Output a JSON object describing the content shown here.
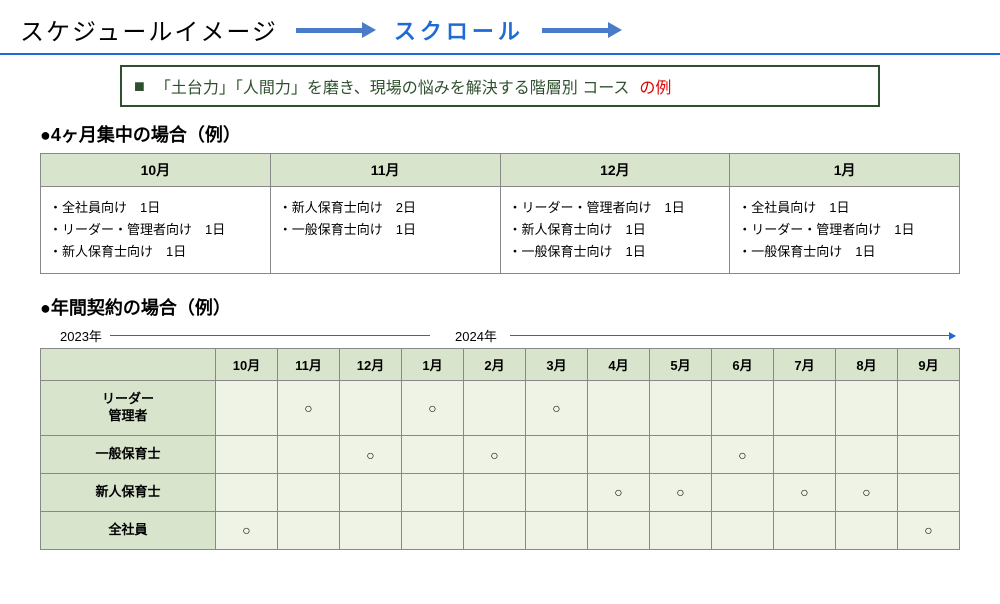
{
  "header": {
    "title": "スケジュールイメージ",
    "scroll_label": "スクロール"
  },
  "banner": {
    "square": "■",
    "text_main": "「土台力」「人間力」を磨き、現場の悩みを解決する階層別 コース",
    "text_red": "の例"
  },
  "section1": {
    "heading": "●4ヶ月集中の場合（例）",
    "months": [
      "10月",
      "11月",
      "12月",
      "1月"
    ],
    "cells": [
      "・全社員向け　1日\n・リーダー・管理者向け　1日\n・新人保育士向け　1日",
      "・新人保育士向け　2日\n・一般保育士向け　1日",
      "・リーダー・管理者向け　1日\n・新人保育士向け　1日\n・一般保育士向け　1日",
      "・全社員向け　1日\n・リーダー・管理者向け　1日\n・一般保育士向け　1日"
    ]
  },
  "section2": {
    "heading": "●年間契約の場合（例）",
    "year1": "2023年",
    "year2": "2024年",
    "months": [
      "10月",
      "11月",
      "12月",
      "1月",
      "2月",
      "3月",
      "4月",
      "5月",
      "6月",
      "7月",
      "8月",
      "9月"
    ],
    "rows": [
      {
        "label": "リーダー\n管理者",
        "marks": [
          "",
          "○",
          "",
          "○",
          "",
          "○",
          "",
          "",
          "",
          "",
          "",
          ""
        ]
      },
      {
        "label": "一般保育士",
        "marks": [
          "",
          "",
          "○",
          "",
          "○",
          "",
          "",
          "",
          "○",
          "",
          "",
          ""
        ]
      },
      {
        "label": "新人保育士",
        "marks": [
          "",
          "",
          "",
          "",
          "",
          "",
          "○",
          "○",
          "",
          "○",
          "○",
          ""
        ]
      },
      {
        "label": "全社員",
        "marks": [
          "○",
          "",
          "",
          "",
          "",
          "",
          "",
          "",
          "",
          "",
          "",
          "○"
        ]
      }
    ],
    "mark_symbol": "○"
  },
  "colors": {
    "arrow": "#4a7bc8",
    "scroll_text": "#1e6bd6",
    "header_bg": "#d8e4cc",
    "cell_bg": "#eef3e6",
    "banner_border": "#2f4f2f",
    "red": "#e00000"
  }
}
